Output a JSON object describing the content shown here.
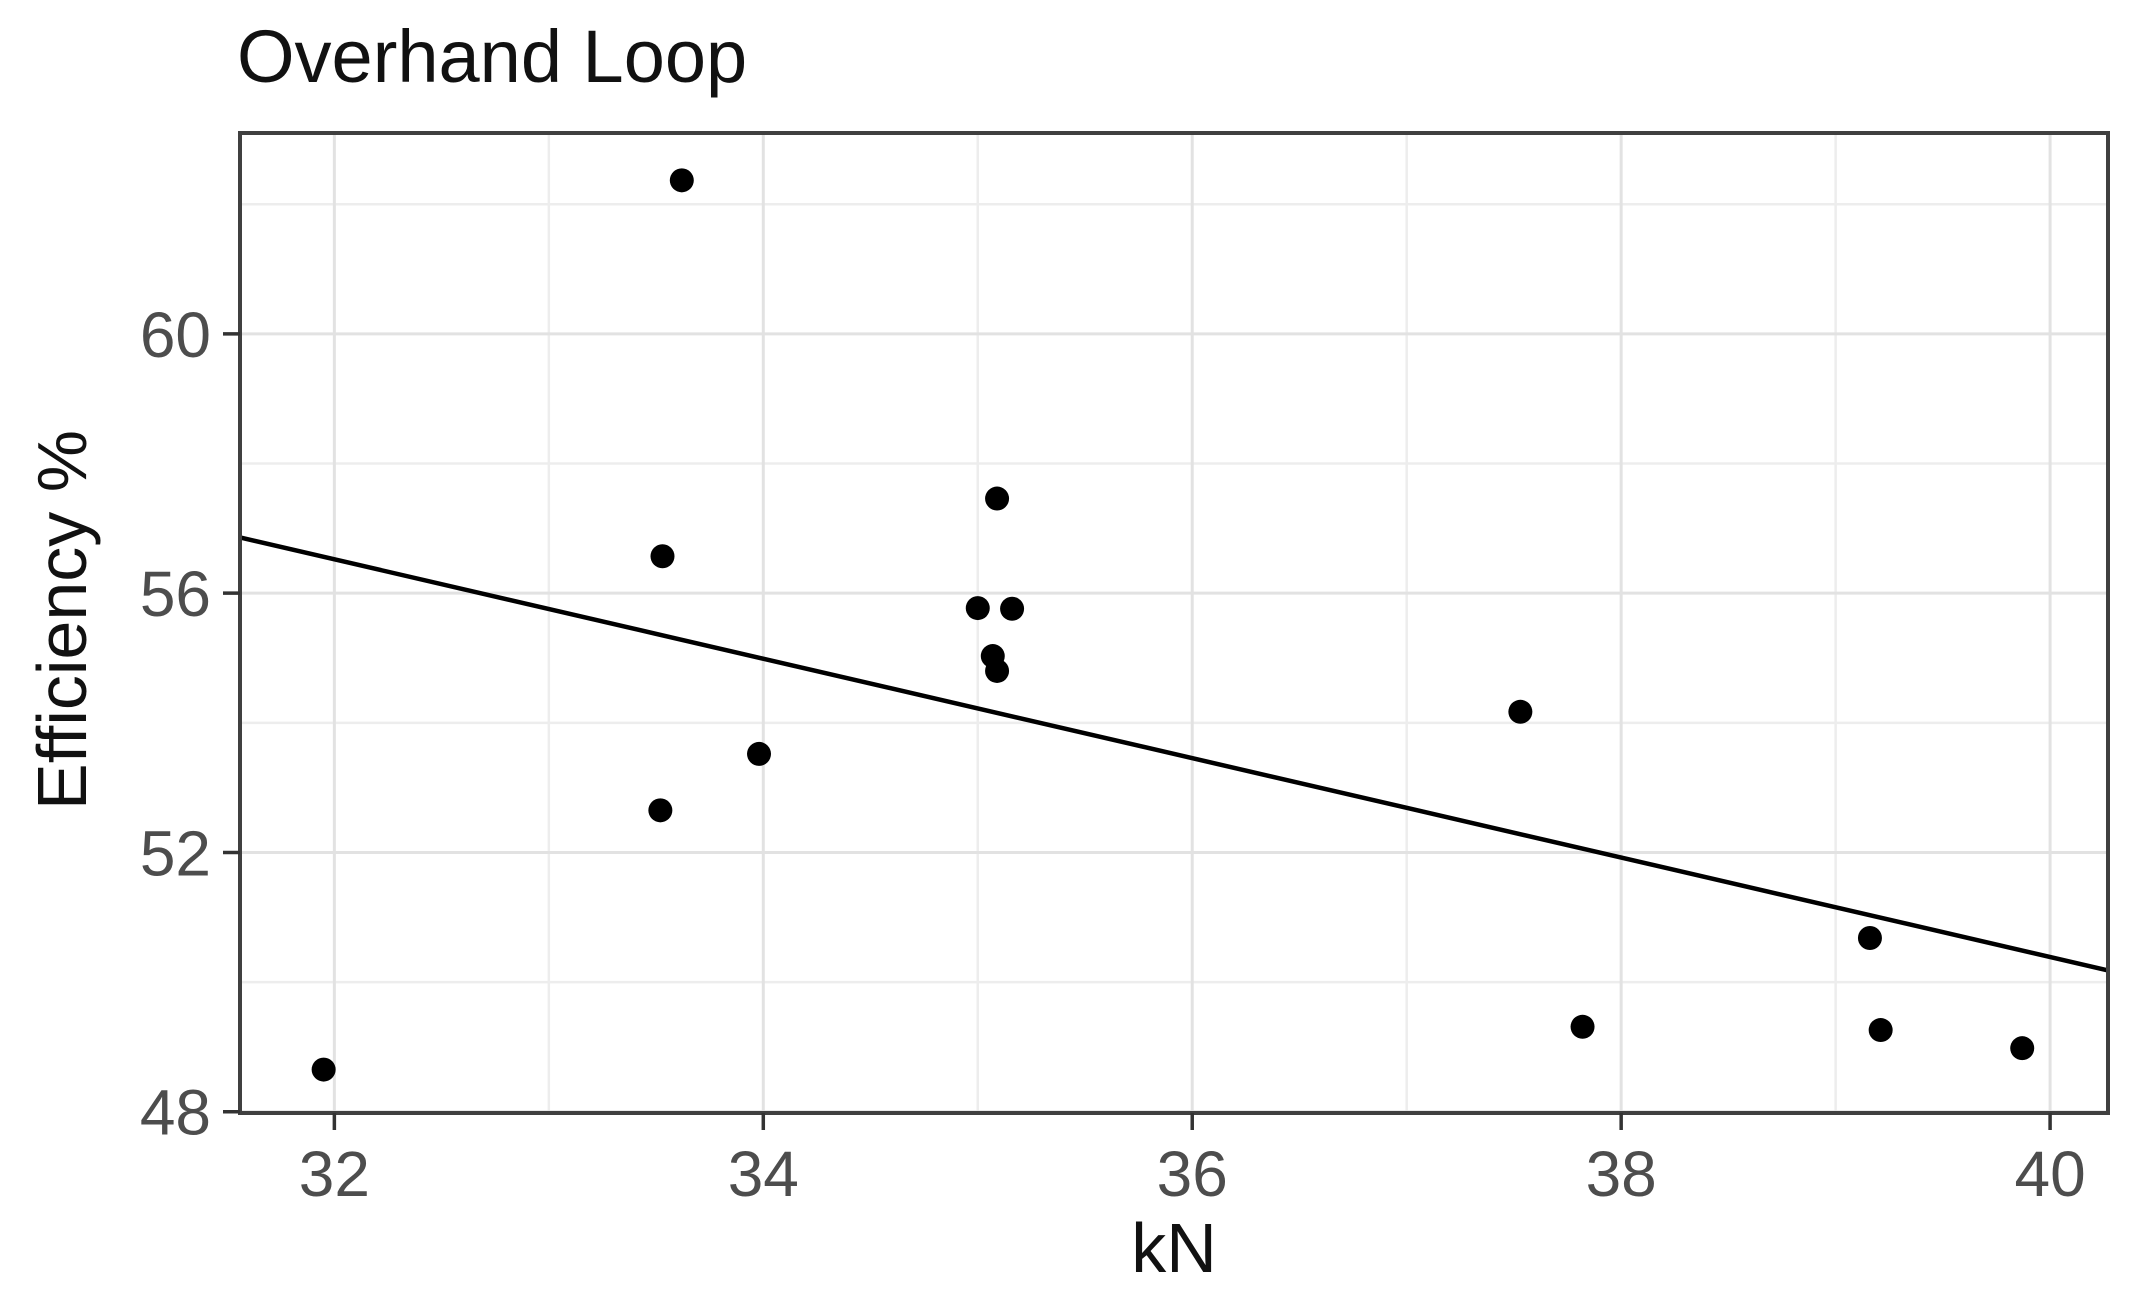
{
  "chart_data": {
    "type": "scatter",
    "title": "Overhand Loop",
    "xlabel": "kN",
    "ylabel": "Efficiency %",
    "x_ticks": [
      32,
      34,
      36,
      38,
      40
    ],
    "y_ticks": [
      48,
      52,
      56,
      60
    ],
    "x_minor_gridlines": [
      33,
      35,
      37,
      39
    ],
    "y_minor_gridlines": [
      50,
      54,
      58,
      62
    ],
    "xlim": [
      31.56,
      40.27
    ],
    "ylim": [
      47.98,
      63.1
    ],
    "grid": true,
    "legend": "none",
    "points": [
      {
        "x": 31.95,
        "y": 48.65
      },
      {
        "x": 33.62,
        "y": 62.37
      },
      {
        "x": 33.53,
        "y": 56.57
      },
      {
        "x": 33.52,
        "y": 52.65
      },
      {
        "x": 33.98,
        "y": 53.52
      },
      {
        "x": 35.09,
        "y": 57.46
      },
      {
        "x": 35.0,
        "y": 55.77
      },
      {
        "x": 35.16,
        "y": 55.76
      },
      {
        "x": 35.07,
        "y": 55.03
      },
      {
        "x": 35.09,
        "y": 54.8
      },
      {
        "x": 37.53,
        "y": 54.17
      },
      {
        "x": 37.82,
        "y": 49.31
      },
      {
        "x": 39.16,
        "y": 50.68
      },
      {
        "x": 39.21,
        "y": 49.26
      },
      {
        "x": 39.87,
        "y": 48.98
      }
    ],
    "trend_line": {
      "x1": 31.56,
      "y1": 56.86,
      "x2": 40.27,
      "y2": 50.18
    },
    "colors": {
      "point": "#000000",
      "trend": "#000000",
      "panel_border": "#404040",
      "tick_mark": "#333333",
      "grid_major": "#e2e2e2",
      "grid_minor": "#ededed",
      "tick_text": "#4d4d4d",
      "title_text": "#111111",
      "background": "#ffffff"
    }
  }
}
